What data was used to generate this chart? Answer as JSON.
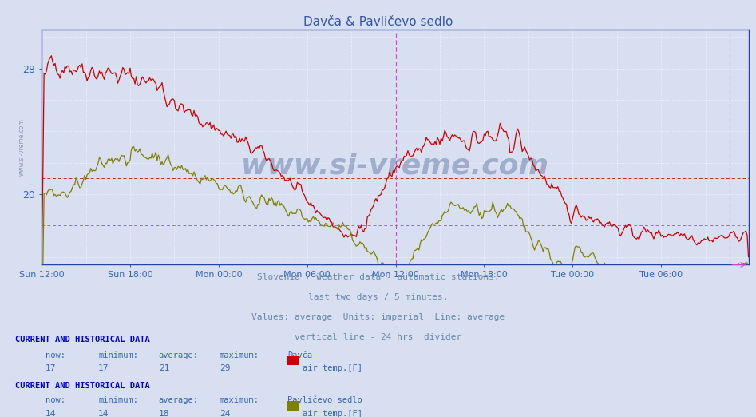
{
  "title": "Davča & Pavličevo sedlo",
  "title_color": "#3355aa",
  "fig_bg_color": "#d8dff0",
  "plot_bg_color": "#d8dff0",
  "ylim_min": 15.5,
  "ylim_max": 30.5,
  "ytick_vals": [
    20,
    28
  ],
  "ytick_labels": [
    "20",
    "28"
  ],
  "grid_color": "#ffffff",
  "davca_color": "#cc0000",
  "pavlicevo_color": "#808000",
  "davca_avg": 21.0,
  "pavlicevo_avg": 18.0,
  "vline_24h_color": "#cc44cc",
  "left_vline_color": "#0000cc",
  "right_vline_color": "#cc44cc",
  "xtick_labels": [
    "Sun 12:00",
    "Sun 18:00",
    "Mon 00:00",
    "Mon 06:00",
    "Mon 12:00",
    "Mon 18:00",
    "Tue 00:00",
    "Tue 06:00"
  ],
  "footer_lines": [
    "Slovenia / weather data - automatic stations.",
    "last two days / 5 minutes.",
    "Values: average  Units: imperial  Line: average",
    "vertical line - 24 hrs  divider"
  ],
  "footer_color": "#6688aa",
  "info_color": "#3366bb",
  "subtitle_color": "#0000cc",
  "subtitle": "CURRENT AND HISTORICAL DATA",
  "col_labels": [
    "now:",
    "minimum:",
    "average:",
    "maximum:"
  ],
  "davca_label": "Davča",
  "davca_now": "17",
  "davca_min": "17",
  "davca_avg_val": "21",
  "davca_max": "29",
  "pavlicevo_label": "Pavličevo sedlo",
  "pavlicevo_now": "14",
  "pavlicevo_min": "14",
  "pavlicevo_avg_val": "18",
  "pavlicevo_max": "24",
  "legend_label": "air temp.[F]",
  "watermark": "www.si-vreme.com",
  "watermark_color": "#1a3a7a",
  "watermark_alpha": 0.3,
  "n_points": 576,
  "vline_24h_idx": 288,
  "vline_now_idx": 560,
  "left_margin_label": "www.si-vreme.com",
  "left_label_color": "#7788aa"
}
